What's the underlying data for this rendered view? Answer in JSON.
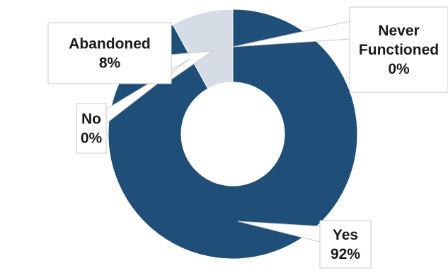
{
  "chart_data": {
    "type": "pie",
    "variant": "donut",
    "title": "",
    "legend": "none",
    "colors": {
      "Yes": "#1f4e79",
      "Abandoned": "#d6dce5",
      "No": "#1f4e79",
      "Never Functioned": "#1f4e79"
    },
    "slices": [
      {
        "label": "Yes",
        "value": 92,
        "value_label": "92%"
      },
      {
        "label": "Abandoned",
        "value": 8,
        "value_label": "8%"
      },
      {
        "label": "No",
        "value": 0,
        "value_label": "0%"
      },
      {
        "label": "Never Functioned",
        "value": 0,
        "value_label": "0%"
      }
    ],
    "data_labels": [
      {
        "lines": [
          "Yes",
          "92%"
        ]
      },
      {
        "lines": [
          "Abandoned",
          "8%"
        ]
      },
      {
        "lines": [
          "No",
          "0%"
        ]
      },
      {
        "lines": [
          "Never",
          "Functioned",
          "0%"
        ]
      }
    ]
  }
}
